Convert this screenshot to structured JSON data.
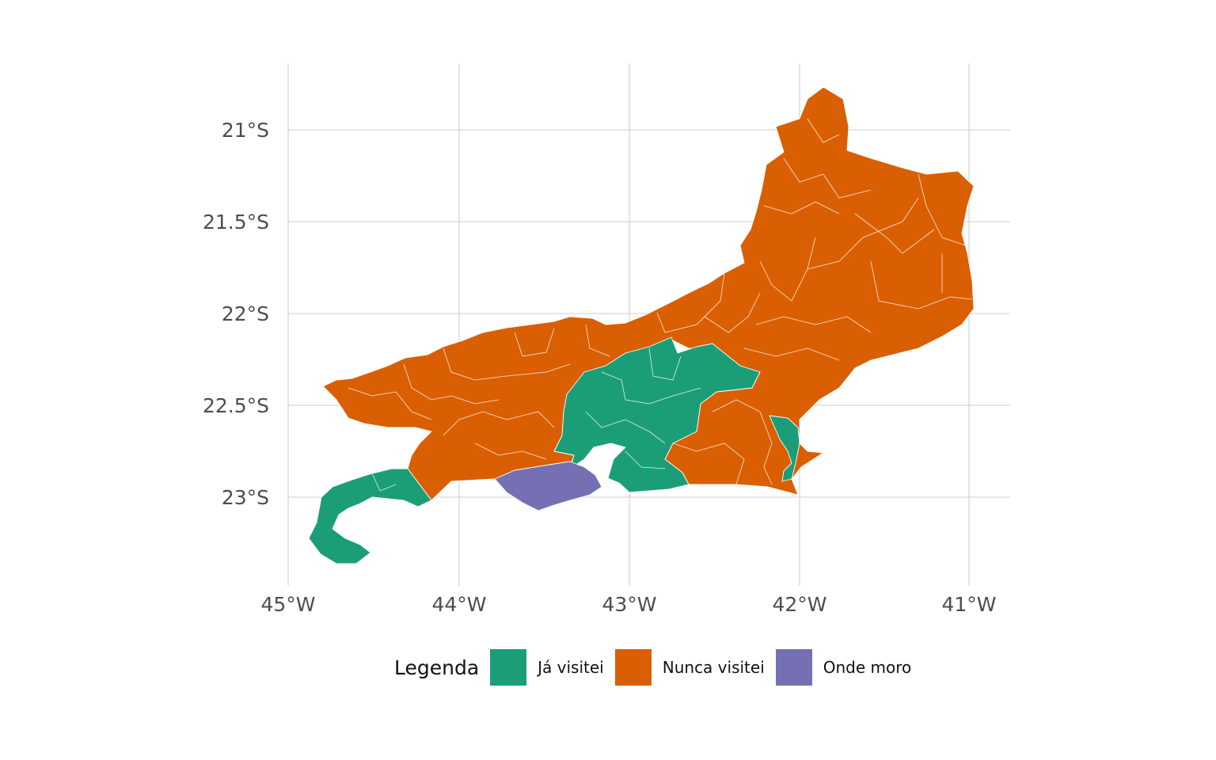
{
  "colors": {
    "visited": "#1b9e77",
    "never": "#d95f02",
    "home": "#7570b3",
    "grid": "#d6d6d6",
    "axis_text": "#4d4d4d"
  },
  "axes": {
    "y_ticks": [
      "21°S",
      "21.5°S",
      "22°S",
      "22.5°S",
      "23°S"
    ],
    "x_ticks": [
      "45°W",
      "44°W",
      "43°W",
      "42°W",
      "41°W"
    ]
  },
  "legend": {
    "title": "Legenda",
    "items": [
      {
        "label": "Já visitei",
        "color": "#1b9e77"
      },
      {
        "label": "Nunca visitei",
        "color": "#d95f02"
      },
      {
        "label": "Onde moro",
        "color": "#7570b3"
      }
    ]
  }
}
